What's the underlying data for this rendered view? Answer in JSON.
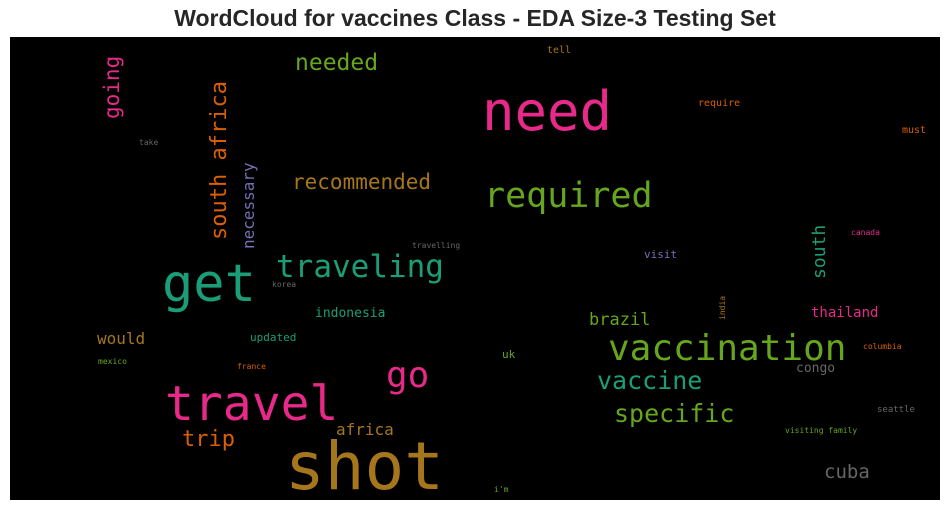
{
  "title": "WordCloud for vaccines Class - EDA Size-3 Testing Set",
  "chart_data": {
    "type": "wordcloud",
    "background": "#000000",
    "words": [
      {
        "text": "shot",
        "weight": 1.0,
        "color": "#a6761d",
        "vertical": false
      },
      {
        "text": "need",
        "weight": 0.86,
        "color": "#e7298a",
        "vertical": false
      },
      {
        "text": "travel",
        "weight": 0.82,
        "color": "#e7298a",
        "vertical": false
      },
      {
        "text": "get",
        "weight": 0.8,
        "color": "#1b9e77",
        "vertical": false
      },
      {
        "text": "vaccination",
        "weight": 0.64,
        "color": "#66a61e",
        "vertical": false
      },
      {
        "text": "required",
        "weight": 0.6,
        "color": "#66a61e",
        "vertical": false
      },
      {
        "text": "go",
        "weight": 0.6,
        "color": "#e7298a",
        "vertical": false
      },
      {
        "text": "traveling",
        "weight": 0.53,
        "color": "#1b9e77",
        "vertical": false
      },
      {
        "text": "specific",
        "weight": 0.42,
        "color": "#66a61e",
        "vertical": false
      },
      {
        "text": "vaccine",
        "weight": 0.42,
        "color": "#1b9e77",
        "vertical": false
      },
      {
        "text": "south africa",
        "weight": 0.4,
        "color": "#d95f02",
        "vertical": true
      },
      {
        "text": "needed",
        "weight": 0.38,
        "color": "#66a61e",
        "vertical": false
      },
      {
        "text": "trip",
        "weight": 0.38,
        "color": "#d95f02",
        "vertical": false
      },
      {
        "text": "recommended",
        "weight": 0.36,
        "color": "#a6761d",
        "vertical": false
      },
      {
        "text": "going",
        "weight": 0.36,
        "color": "#e7298a",
        "vertical": true
      },
      {
        "text": "cuba",
        "weight": 0.34,
        "color": "#666666",
        "vertical": false
      },
      {
        "text": "south",
        "weight": 0.32,
        "color": "#1b9e77",
        "vertical": true
      },
      {
        "text": "necessary",
        "weight": 0.28,
        "color": "#7570b3",
        "vertical": true
      },
      {
        "text": "brazil",
        "weight": 0.3,
        "color": "#66a61e",
        "vertical": false
      },
      {
        "text": "africa",
        "weight": 0.28,
        "color": "#a6761d",
        "vertical": false
      },
      {
        "text": "would",
        "weight": 0.28,
        "color": "#a6761d",
        "vertical": false
      },
      {
        "text": "thailand",
        "weight": 0.24,
        "color": "#e7298a",
        "vertical": false
      },
      {
        "text": "indonesia",
        "weight": 0.22,
        "color": "#1b9e77",
        "vertical": false
      },
      {
        "text": "congo",
        "weight": 0.22,
        "color": "#666666",
        "vertical": false
      },
      {
        "text": "updated",
        "weight": 0.19,
        "color": "#1b9e77",
        "vertical": false
      },
      {
        "text": "visit",
        "weight": 0.17,
        "color": "#7570b3",
        "vertical": false
      },
      {
        "text": "uk",
        "weight": 0.17,
        "color": "#66a61e",
        "vertical": false
      },
      {
        "text": "require",
        "weight": 0.15,
        "color": "#d95f02",
        "vertical": false
      },
      {
        "text": "must",
        "weight": 0.15,
        "color": "#d95f02",
        "vertical": false
      },
      {
        "text": "tell",
        "weight": 0.14,
        "color": "#a6761d",
        "vertical": false
      },
      {
        "text": "seattle",
        "weight": 0.12,
        "color": "#666666",
        "vertical": false
      },
      {
        "text": "columbia",
        "weight": 0.12,
        "color": "#d95f02",
        "vertical": false
      },
      {
        "text": "visiting family",
        "weight": 0.12,
        "color": "#66a61e",
        "vertical": false
      },
      {
        "text": "canada",
        "weight": 0.12,
        "color": "#e7298a",
        "vertical": false
      },
      {
        "text": "travelling",
        "weight": 0.12,
        "color": "#666666",
        "vertical": false
      },
      {
        "text": "take",
        "weight": 0.11,
        "color": "#666666",
        "vertical": false
      },
      {
        "text": "mexico",
        "weight": 0.11,
        "color": "#66a61e",
        "vertical": false
      },
      {
        "text": "france",
        "weight": 0.11,
        "color": "#d95f02",
        "vertical": false
      },
      {
        "text": "korea",
        "weight": 0.11,
        "color": "#666666",
        "vertical": false
      },
      {
        "text": "i'm",
        "weight": 0.11,
        "color": "#66a61e",
        "vertical": false
      },
      {
        "text": "india",
        "weight": 0.11,
        "color": "#a6761d",
        "vertical": true
      }
    ]
  }
}
